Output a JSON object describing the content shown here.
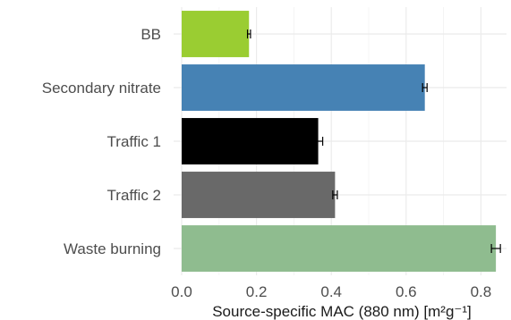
{
  "chart_data": {
    "type": "bar",
    "orientation": "horizontal",
    "categories": [
      "BB",
      "Secondary nitrate",
      "Traffic 1",
      "Traffic 2",
      "Waste burning"
    ],
    "values": [
      0.18,
      0.65,
      0.365,
      0.41,
      0.84
    ],
    "errors": [
      0.004,
      0.006,
      0.012,
      0.006,
      0.012
    ],
    "colors": [
      "#9acd32",
      "#4682b4",
      "#000000",
      "#696969",
      "#8fbc8f"
    ],
    "xlabel": "Source-specific MAC (880 nm) [m²g⁻¹]",
    "ylabel": "",
    "xlim": [
      0,
      0.86
    ],
    "x_ticks": [
      0.0,
      0.2,
      0.4,
      0.6,
      0.8
    ],
    "x_tick_labels": [
      "0.0",
      "0.2",
      "0.4",
      "0.6",
      "0.8"
    ],
    "grid": true,
    "legend": "none"
  }
}
